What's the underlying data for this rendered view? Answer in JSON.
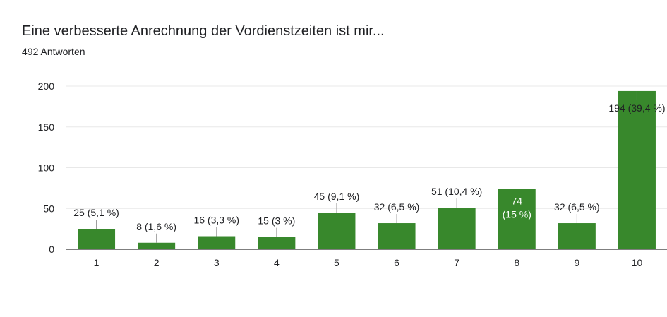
{
  "header": {
    "title": "Eine verbesserte Anrechnung der Vordienstzeiten ist mir...",
    "subtitle": "492 Antworten"
  },
  "colors": {
    "bar": "#38882c",
    "grid": "#e8e8e8",
    "axis": "#333333",
    "leader": "#999999"
  },
  "chart_data": {
    "type": "bar",
    "title": "Eine verbesserte Anrechnung der Vordienstzeiten ist mir...",
    "subtitle": "492 Antworten",
    "xlabel": "",
    "ylabel": "",
    "categories": [
      "1",
      "2",
      "3",
      "4",
      "5",
      "6",
      "7",
      "8",
      "9",
      "10"
    ],
    "values": [
      25,
      8,
      16,
      15,
      45,
      32,
      51,
      74,
      32,
      194
    ],
    "labels": [
      [
        "25 (5,1 %)"
      ],
      [
        "8 (1,6 %)"
      ],
      [
        "16 (3,3 %)"
      ],
      [
        "15 (3 %)"
      ],
      [
        "45 (9,1 %)"
      ],
      [
        "32 (6,5 %)"
      ],
      [
        "51 (10,4 %)"
      ],
      [
        "74",
        "(15 %)"
      ],
      [
        "32 (6,5 %)"
      ],
      [
        "194 (39,4 %)"
      ]
    ],
    "label_inside": [
      false,
      false,
      false,
      false,
      false,
      false,
      false,
      true,
      false,
      true
    ],
    "yticks": [
      0,
      50,
      100,
      150,
      200
    ],
    "ylim": [
      0,
      200
    ],
    "grid": true,
    "legend": "none"
  }
}
